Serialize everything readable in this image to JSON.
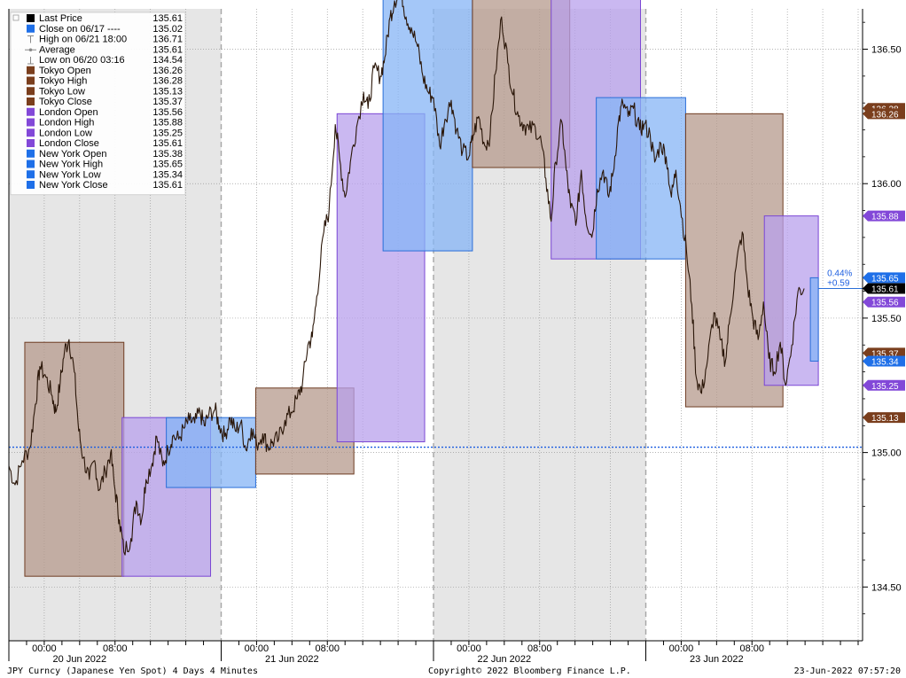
{
  "chart_data": {
    "type": "line",
    "title": "",
    "ylim": [
      134.3,
      136.65
    ],
    "x_tick_labels": [
      {
        "label": "00:00",
        "t": 2.0
      },
      {
        "label": "08:00",
        "t": 10.0
      },
      {
        "label": "00:00",
        "t": 26.0
      },
      {
        "label": "08:00",
        "t": 34.0
      },
      {
        "label": "00:00",
        "t": 50.0
      },
      {
        "label": "08:00",
        "t": 58.0
      },
      {
        "label": "00:00",
        "t": 74.0
      },
      {
        "label": "08:00",
        "t": 82.0
      }
    ],
    "day_labels": [
      {
        "label": "20 Jun 2022",
        "t": 6.0
      },
      {
        "label": "21 Jun 2022",
        "t": 30.0
      },
      {
        "label": "22 Jun 2022",
        "t": 54.0
      },
      {
        "label": "23 Jun 2022",
        "t": 78.0
      }
    ],
    "y_ticks": [
      134.5,
      135.0,
      135.5,
      136.0,
      136.5
    ],
    "y_tick_labels": [
      "134.50",
      "135.00",
      "135.50",
      "136.00",
      "136.50"
    ],
    "shaded_days": [
      [
        -2.0,
        22.0
      ],
      [
        46.0,
        70.0
      ]
    ],
    "day_boundaries": [
      22.0,
      46.0,
      70.0
    ],
    "price_series": {
      "name": "Last Price",
      "color": "#2a1608",
      "points": [
        [
          -2.0,
          134.95
        ],
        [
          -1.3,
          134.88
        ],
        [
          -0.5,
          134.97
        ],
        [
          0.4,
          135.02
        ],
        [
          1.0,
          135.18
        ],
        [
          1.5,
          135.32
        ],
        [
          2.2,
          135.28
        ],
        [
          2.9,
          135.21
        ],
        [
          3.3,
          135.15
        ],
        [
          3.8,
          135.26
        ],
        [
          4.3,
          135.38
        ],
        [
          4.8,
          135.42
        ],
        [
          5.4,
          135.3
        ],
        [
          5.9,
          135.08
        ],
        [
          6.4,
          134.98
        ],
        [
          7.1,
          134.9
        ],
        [
          7.7,
          134.97
        ],
        [
          8.2,
          134.86
        ],
        [
          8.9,
          134.93
        ],
        [
          9.5,
          135.0
        ],
        [
          10.0,
          134.86
        ],
        [
          10.5,
          134.75
        ],
        [
          11.0,
          134.63
        ],
        [
          11.8,
          134.68
        ],
        [
          12.4,
          134.82
        ],
        [
          13.0,
          134.75
        ],
        [
          13.5,
          134.9
        ],
        [
          14.2,
          134.96
        ],
        [
          14.7,
          135.06
        ],
        [
          15.4,
          134.95
        ],
        [
          16.0,
          135.01
        ],
        [
          16.5,
          135.06
        ],
        [
          17.2,
          135.05
        ],
        [
          17.8,
          135.09
        ],
        [
          18.4,
          135.12
        ],
        [
          19.0,
          135.11
        ],
        [
          19.6,
          135.15
        ],
        [
          20.1,
          135.1
        ],
        [
          20.6,
          135.14
        ],
        [
          21.3,
          135.16
        ],
        [
          21.8,
          135.1
        ],
        [
          22.4,
          135.06
        ],
        [
          23.0,
          135.13
        ],
        [
          23.6,
          135.08
        ],
        [
          24.2,
          135.11
        ],
        [
          24.8,
          135.01
        ],
        [
          25.4,
          135.09
        ],
        [
          26.0,
          135.03
        ],
        [
          26.7,
          135.07
        ],
        [
          27.3,
          135.02
        ],
        [
          27.8,
          135.04
        ],
        [
          28.5,
          135.05
        ],
        [
          29.2,
          135.12
        ],
        [
          29.9,
          135.15
        ],
        [
          30.6,
          135.2
        ],
        [
          31.2,
          135.26
        ],
        [
          31.8,
          135.4
        ],
        [
          32.3,
          135.43
        ],
        [
          32.8,
          135.58
        ],
        [
          33.6,
          135.82
        ],
        [
          34.2,
          135.9
        ],
        [
          34.9,
          136.22
        ],
        [
          35.4,
          136.09
        ],
        [
          36.0,
          135.95
        ],
        [
          36.6,
          136.08
        ],
        [
          37.3,
          136.21
        ],
        [
          38.1,
          136.34
        ],
        [
          38.6,
          136.28
        ],
        [
          39.3,
          136.43
        ],
        [
          40.0,
          136.4
        ],
        [
          40.5,
          136.47
        ],
        [
          41.1,
          136.62
        ],
        [
          41.6,
          136.68
        ],
        [
          42.3,
          136.72
        ],
        [
          42.9,
          136.62
        ],
        [
          43.5,
          136.58
        ],
        [
          44.2,
          136.51
        ],
        [
          44.8,
          136.4
        ],
        [
          45.4,
          136.34
        ],
        [
          46.0,
          136.32
        ],
        [
          46.7,
          136.14
        ],
        [
          47.3,
          136.24
        ],
        [
          48.0,
          136.31
        ],
        [
          48.6,
          136.2
        ],
        [
          49.3,
          136.12
        ],
        [
          50.0,
          136.1
        ],
        [
          50.5,
          136.18
        ],
        [
          51.1,
          136.25
        ],
        [
          51.8,
          136.14
        ],
        [
          52.4,
          136.18
        ],
        [
          53.0,
          136.41
        ],
        [
          53.7,
          136.62
        ],
        [
          54.4,
          136.45
        ],
        [
          55.0,
          136.33
        ],
        [
          55.6,
          136.25
        ],
        [
          56.2,
          136.22
        ],
        [
          56.8,
          136.2
        ],
        [
          57.5,
          136.21
        ],
        [
          58.2,
          136.15
        ],
        [
          58.7,
          136.02
        ],
        [
          59.3,
          135.86
        ],
        [
          59.8,
          136.08
        ],
        [
          60.5,
          136.23
        ],
        [
          61.0,
          136.05
        ],
        [
          61.5,
          135.91
        ],
        [
          62.2,
          135.87
        ],
        [
          62.7,
          136.05
        ],
        [
          63.2,
          135.88
        ],
        [
          63.9,
          135.8
        ],
        [
          64.5,
          135.98
        ],
        [
          65.2,
          136.05
        ],
        [
          65.8,
          135.95
        ],
        [
          66.3,
          136.04
        ],
        [
          66.9,
          136.23
        ],
        [
          67.4,
          136.3
        ],
        [
          68.0,
          136.25
        ],
        [
          68.6,
          136.28
        ],
        [
          69.3,
          136.2
        ],
        [
          69.8,
          136.22
        ],
        [
          70.5,
          136.18
        ],
        [
          71.0,
          136.08
        ],
        [
          71.7,
          136.15
        ],
        [
          72.3,
          136.1
        ],
        [
          72.9,
          135.95
        ],
        [
          73.4,
          136.05
        ],
        [
          73.9,
          135.92
        ],
        [
          74.6,
          135.75
        ],
        [
          75.2,
          135.55
        ],
        [
          75.7,
          135.28
        ],
        [
          76.3,
          135.22
        ],
        [
          77.0,
          135.35
        ],
        [
          77.7,
          135.52
        ],
        [
          78.4,
          135.42
        ],
        [
          79.0,
          135.34
        ],
        [
          79.5,
          135.5
        ],
        [
          80.2,
          135.69
        ],
        [
          80.9,
          135.82
        ],
        [
          81.5,
          135.62
        ],
        [
          82.1,
          135.5
        ],
        [
          82.7,
          135.42
        ],
        [
          83.3,
          135.56
        ],
        [
          83.9,
          135.35
        ],
        [
          84.5,
          135.3
        ],
        [
          85.2,
          135.41
        ],
        [
          85.8,
          135.25
        ],
        [
          86.5,
          135.4
        ],
        [
          87.2,
          135.6
        ],
        [
          87.9,
          135.61
        ]
      ]
    },
    "session_boxes": [
      {
        "session": "tokyo",
        "t0": -0.2,
        "t1": 11.0,
        "low": 134.54,
        "high": 135.41
      },
      {
        "session": "london",
        "t0": 10.8,
        "t1": 20.8,
        "low": 134.54,
        "high": 135.13
      },
      {
        "session": "newyork",
        "t0": 15.8,
        "t1": 25.9,
        "low": 134.87,
        "high": 135.13
      },
      {
        "session": "tokyo",
        "t0": 25.9,
        "t1": 37.0,
        "low": 134.92,
        "high": 135.24
      },
      {
        "session": "london",
        "t0": 35.1,
        "t1": 45.0,
        "low": 135.04,
        "high": 136.26
      },
      {
        "session": "newyork",
        "t0": 40.3,
        "t1": 50.4,
        "low": 135.75,
        "high": 136.78
      },
      {
        "session": "tokyo",
        "t0": 50.4,
        "t1": 61.4,
        "low": 136.06,
        "high": 136.79
      },
      {
        "session": "london",
        "t0": 59.3,
        "t1": 69.4,
        "low": 135.72,
        "high": 136.73
      },
      {
        "session": "newyork",
        "t0": 64.4,
        "t1": 74.5,
        "low": 135.72,
        "high": 136.32
      },
      {
        "session": "tokyo",
        "t0": 74.5,
        "t1": 85.5,
        "low": 135.17,
        "high": 136.26
      },
      {
        "session": "london",
        "t0": 83.4,
        "t1": 89.5,
        "low": 135.25,
        "high": 135.88
      },
      {
        "session": "newyork",
        "t0": 88.6,
        "t1": 89.5,
        "low": 135.34,
        "high": 135.65
      }
    ],
    "prev_close_line": {
      "value": 135.02,
      "color": "#1c5ee0"
    },
    "last_price_line": {
      "value": 135.61,
      "t_start": 89.5,
      "color": "#2a6ed8"
    },
    "change_note": {
      "pct": "0.44%",
      "abs": "+0.59",
      "color": "#1c5ee0"
    },
    "axis_tags": [
      {
        "text": "136.28",
        "value": 136.28,
        "color": "#7a3e1d"
      },
      {
        "text": "136.26",
        "value": 136.26,
        "color": "#7a3e1d"
      },
      {
        "text": "135.88",
        "value": 135.88,
        "color": "#8248d8"
      },
      {
        "text": "135.65",
        "value": 135.65,
        "color": "#1e6fe8"
      },
      {
        "text": "135.61",
        "value": 135.61,
        "color": "#000000"
      },
      {
        "text": "135.56",
        "value": 135.56,
        "color": "#8248d8"
      },
      {
        "text": "135.37",
        "value": 135.37,
        "color": "#7a3e1d"
      },
      {
        "text": "135.34",
        "value": 135.34,
        "color": "#1e6fe8"
      },
      {
        "text": "135.25",
        "value": 135.25,
        "color": "#8248d8"
      },
      {
        "text": "135.13",
        "value": 135.13,
        "color": "#7a3e1d"
      }
    ],
    "legend": {
      "placement": "top-left",
      "entries": [
        {
          "marker": "square",
          "color": "#000000",
          "label": "Last Price",
          "value": "135.61"
        },
        {
          "marker": "square",
          "color": "#1e6fe8",
          "label": "Close on 06/17 ----",
          "value": "135.02"
        },
        {
          "marker": "high-sym",
          "color": "#888888",
          "label": "High on 06/21 18:00",
          "value": "136.71"
        },
        {
          "marker": "avg-sym",
          "color": "#888888",
          "label": "Average",
          "value": "135.61"
        },
        {
          "marker": "low-sym",
          "color": "#888888",
          "label": "Low on 06/20 03:16",
          "value": "134.54"
        },
        {
          "marker": "square",
          "color": "#7a3e1d",
          "label": "Tokyo Open",
          "value": "136.26"
        },
        {
          "marker": "square",
          "color": "#7a3e1d",
          "label": "Tokyo High",
          "value": "136.28"
        },
        {
          "marker": "square",
          "color": "#7a3e1d",
          "label": "Tokyo Low",
          "value": "135.13"
        },
        {
          "marker": "square",
          "color": "#7a3e1d",
          "label": "Tokyo Close",
          "value": "135.37"
        },
        {
          "marker": "square",
          "color": "#8248d8",
          "label": "London Open",
          "value": "135.56"
        },
        {
          "marker": "square",
          "color": "#8248d8",
          "label": "London High",
          "value": "135.88"
        },
        {
          "marker": "square",
          "color": "#8248d8",
          "label": "London Low",
          "value": "135.25"
        },
        {
          "marker": "square",
          "color": "#8248d8",
          "label": "London Close",
          "value": "135.61"
        },
        {
          "marker": "square",
          "color": "#1e6fe8",
          "label": "New York Open",
          "value": "135.38"
        },
        {
          "marker": "square",
          "color": "#1e6fe8",
          "label": "New York High",
          "value": "135.65"
        },
        {
          "marker": "square",
          "color": "#1e6fe8",
          "label": "New York Low",
          "value": "135.34"
        },
        {
          "marker": "square",
          "color": "#1e6fe8",
          "label": "New York Close",
          "value": "135.61"
        }
      ]
    },
    "session_colors": {
      "tokyo": {
        "fill": "#b59a8c",
        "stroke": "#6e3c22"
      },
      "london": {
        "fill": "#b8a0ec",
        "stroke": "#7a46d4"
      },
      "newyork": {
        "fill": "#86b4f6",
        "stroke": "#2a6ed8"
      }
    },
    "grid": true
  },
  "footer": {
    "left": "JPY Curncy (Japanese Yen Spot) 4 Days 4 Minutes",
    "center": "Copyright© 2022 Bloomberg Finance L.P.",
    "right": "23-Jun-2022 07:57:20"
  }
}
